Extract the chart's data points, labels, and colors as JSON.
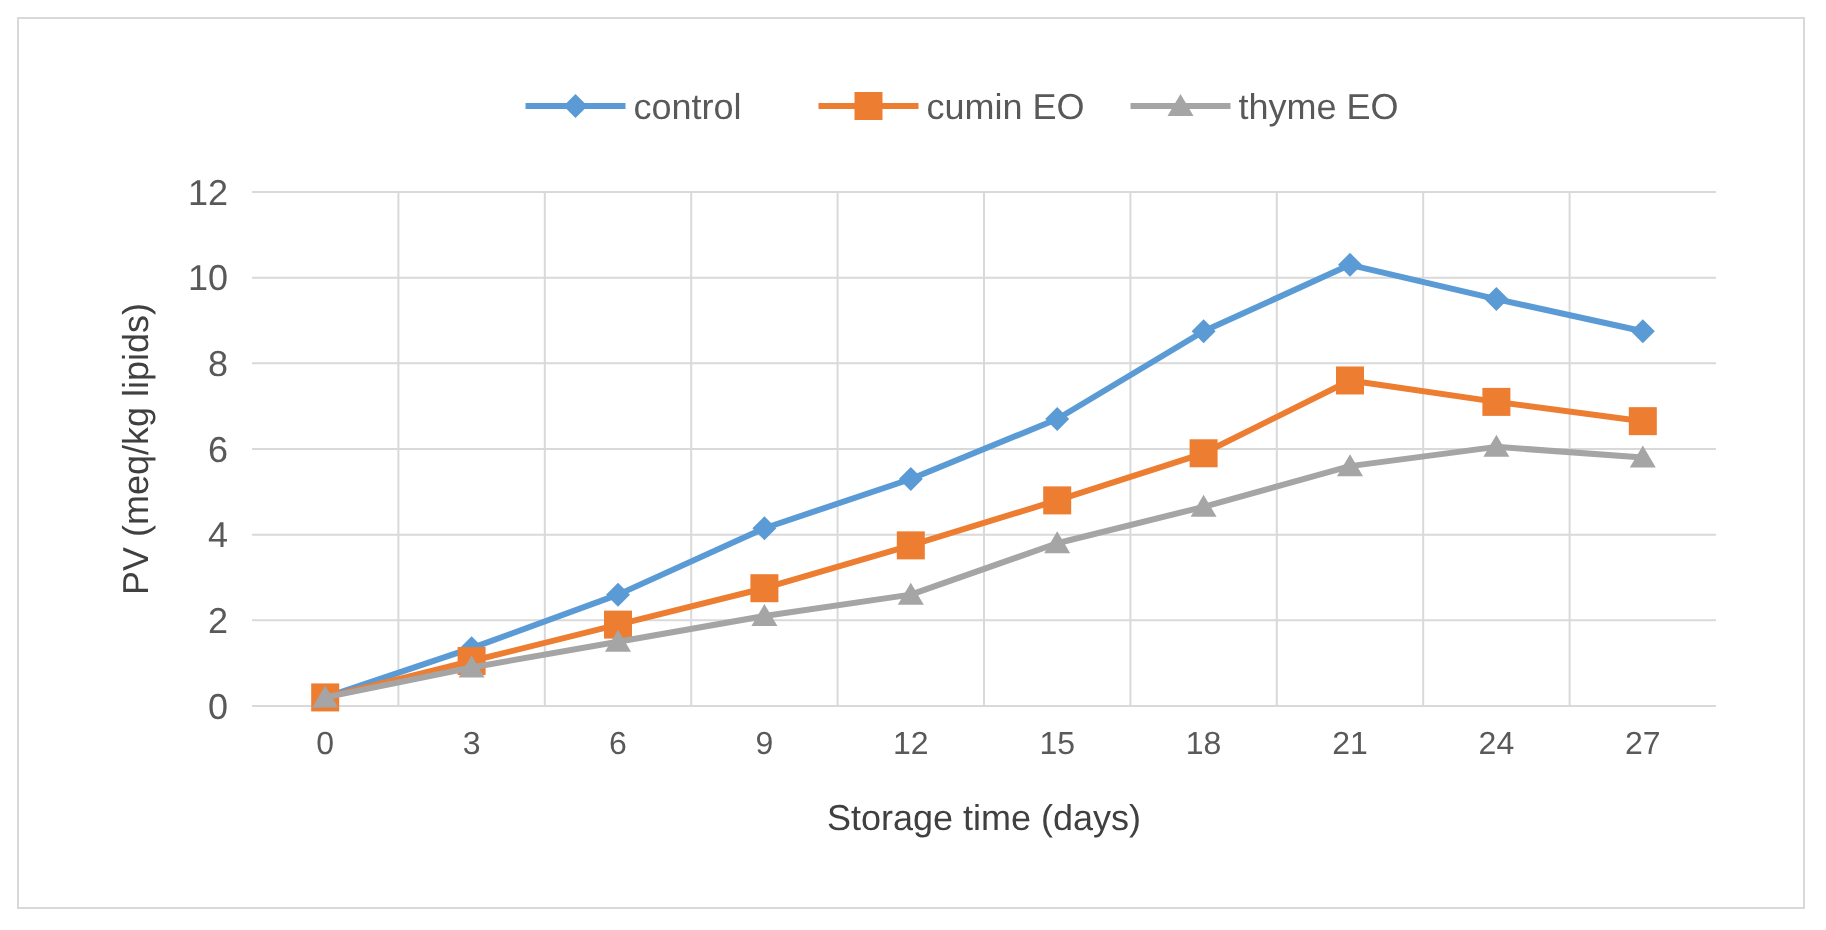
{
  "chart_data": {
    "type": "line",
    "xlabel": "Storage time (days)",
    "ylabel": "PV (meq/kg lipids)",
    "categories": [
      "0",
      "3",
      "6",
      "9",
      "12",
      "15",
      "18",
      "21",
      "24",
      "27"
    ],
    "ylim": [
      0,
      12
    ],
    "yticks": [
      0,
      2,
      4,
      6,
      8,
      10,
      12
    ],
    "grid": true,
    "legend": "top",
    "line_style": "solid",
    "series": [
      {
        "name": "control",
        "color": "#5b9bd5",
        "marker": "diamond",
        "values": [
          0.2,
          1.35,
          2.6,
          4.15,
          5.3,
          6.7,
          8.75,
          10.3,
          9.5,
          8.75
        ]
      },
      {
        "name": "cumin EO",
        "color": "#ed7d31",
        "marker": "square",
        "values": [
          0.2,
          1.05,
          1.9,
          2.75,
          3.75,
          4.8,
          5.9,
          7.6,
          7.1,
          6.65
        ]
      },
      {
        "name": "thyme EO",
        "color": "#a5a5a5",
        "marker": "triangle",
        "values": [
          0.2,
          0.9,
          1.5,
          2.1,
          2.6,
          3.8,
          4.65,
          5.6,
          6.05,
          5.8
        ]
      }
    ]
  }
}
